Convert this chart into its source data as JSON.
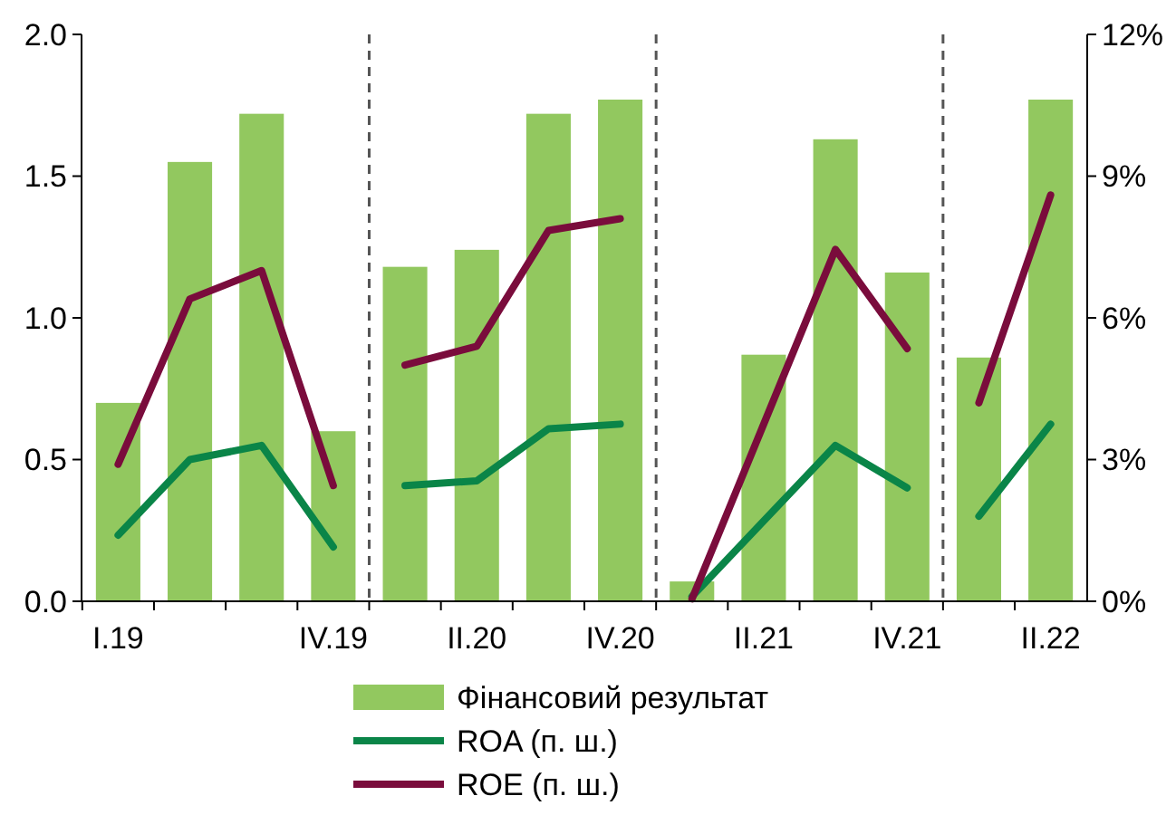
{
  "chart_data": {
    "type": "bar",
    "categories": [
      "I.19",
      null,
      null,
      "IV.19",
      null,
      "II.20",
      null,
      "IV.20",
      null,
      "II.21",
      null,
      "IV.21",
      null,
      "II.22"
    ],
    "series": [
      {
        "name": "Фінансовий результат",
        "color": "#92c85f",
        "values": [
          0.7,
          1.55,
          1.72,
          0.6,
          1.18,
          1.24,
          1.72,
          1.77,
          0.07,
          0.87,
          1.63,
          1.16,
          0.86,
          1.77
        ]
      },
      {
        "name": "ROA (п. ш.)",
        "type": "line",
        "axis": "y2",
        "color": "#0a8548",
        "values": [
          1.4,
          3.0,
          3.3,
          1.15,
          2.45,
          2.55,
          3.65,
          3.75,
          0.1,
          1.7,
          3.3,
          2.4,
          1.8,
          3.75
        ]
      },
      {
        "name": "ROE (п. ш.)",
        "type": "line",
        "axis": "y2",
        "color": "#7a0c3c",
        "values": [
          2.9,
          6.4,
          7.0,
          2.45,
          5.0,
          5.4,
          7.85,
          8.1,
          0.05,
          3.75,
          7.45,
          5.35,
          4.2,
          8.6
        ]
      }
    ],
    "ylim": [
      0,
      2
    ],
    "yticks": [
      {
        "value": 0,
        "label": "0.0"
      },
      {
        "value": 0.5,
        "label": "0.5"
      },
      {
        "value": 1,
        "label": "1.0"
      },
      {
        "value": 1.5,
        "label": "1.5"
      },
      {
        "value": 2,
        "label": "2.0"
      }
    ],
    "y2lim": [
      0,
      12
    ],
    "y2ticks": [
      {
        "value": 0,
        "label": "0%"
      },
      {
        "value": 3,
        "label": "3%"
      },
      {
        "value": 6,
        "label": "6%"
      },
      {
        "value": 9,
        "label": "9%"
      },
      {
        "value": 12,
        "label": "12%"
      }
    ],
    "grid": false,
    "legend": "bottom"
  }
}
